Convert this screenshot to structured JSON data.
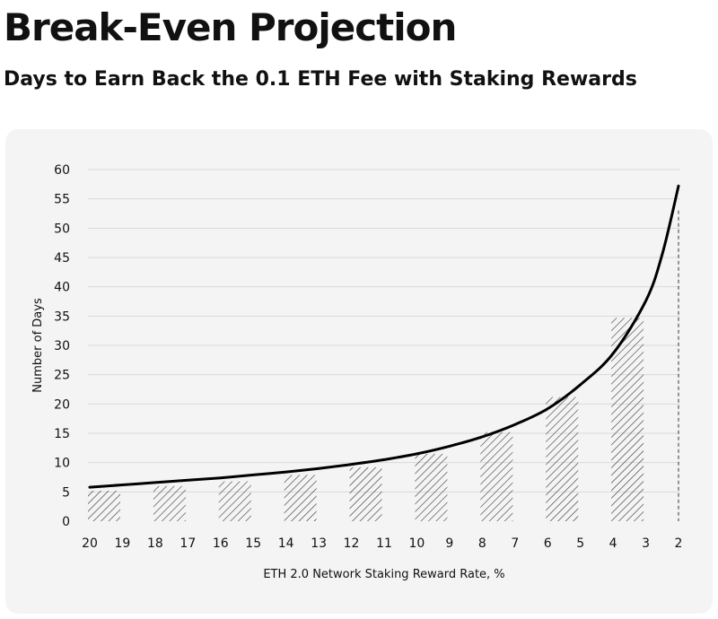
{
  "title": "Break-Even Projection",
  "subtitle": "Days to Earn Back the 0.1 ETH Fee with Staking Rewards",
  "colors": {
    "card": "#f4f4f4",
    "grid": "#d9d9d9",
    "curve": "#000000",
    "hatch": "#333333",
    "text": "#111111"
  },
  "chart_data": {
    "type": "bar",
    "xlabel": "ETH 2.0 Network Staking Reward Rate, %",
    "ylabel": "Number of Days",
    "ylim": [
      0,
      60
    ],
    "yticks": [
      0,
      5,
      10,
      15,
      20,
      25,
      30,
      35,
      40,
      45,
      50,
      55,
      60
    ],
    "xticks": [
      20,
      19,
      18,
      17,
      16,
      15,
      14,
      13,
      12,
      11,
      10,
      9,
      8,
      7,
      6,
      5,
      4,
      3,
      2
    ],
    "xlim": [
      20,
      2
    ],
    "grid": true,
    "bars": [
      {
        "from": 20,
        "to": 19,
        "value": 5.2
      },
      {
        "from": 18,
        "to": 17,
        "value": 6.0
      },
      {
        "from": 16,
        "to": 15,
        "value": 6.8
      },
      {
        "from": 14,
        "to": 13,
        "value": 7.9
      },
      {
        "from": 12,
        "to": 11,
        "value": 9.2
      },
      {
        "from": 10,
        "to": 9,
        "value": 11.5
      },
      {
        "from": 8,
        "to": 7,
        "value": 15.2
      },
      {
        "from": 6,
        "to": 5,
        "value": 21.2
      },
      {
        "from": 4,
        "to": 3,
        "value": 34.7
      },
      {
        "from": 2,
        "to": 2,
        "value": 53.0,
        "style": "dashed-line"
      }
    ],
    "curve": {
      "x": [
        20,
        19,
        18,
        17,
        16,
        15,
        14,
        13,
        12,
        11,
        10,
        9,
        8,
        7,
        6,
        5,
        4,
        3,
        2.5,
        2
      ],
      "y": [
        5.8,
        6.2,
        6.6,
        7.0,
        7.4,
        7.9,
        8.4,
        9.0,
        9.7,
        10.5,
        11.5,
        12.8,
        14.4,
        16.5,
        19.2,
        23.3,
        28.6,
        37.6,
        45.5,
        57.2
      ]
    }
  }
}
